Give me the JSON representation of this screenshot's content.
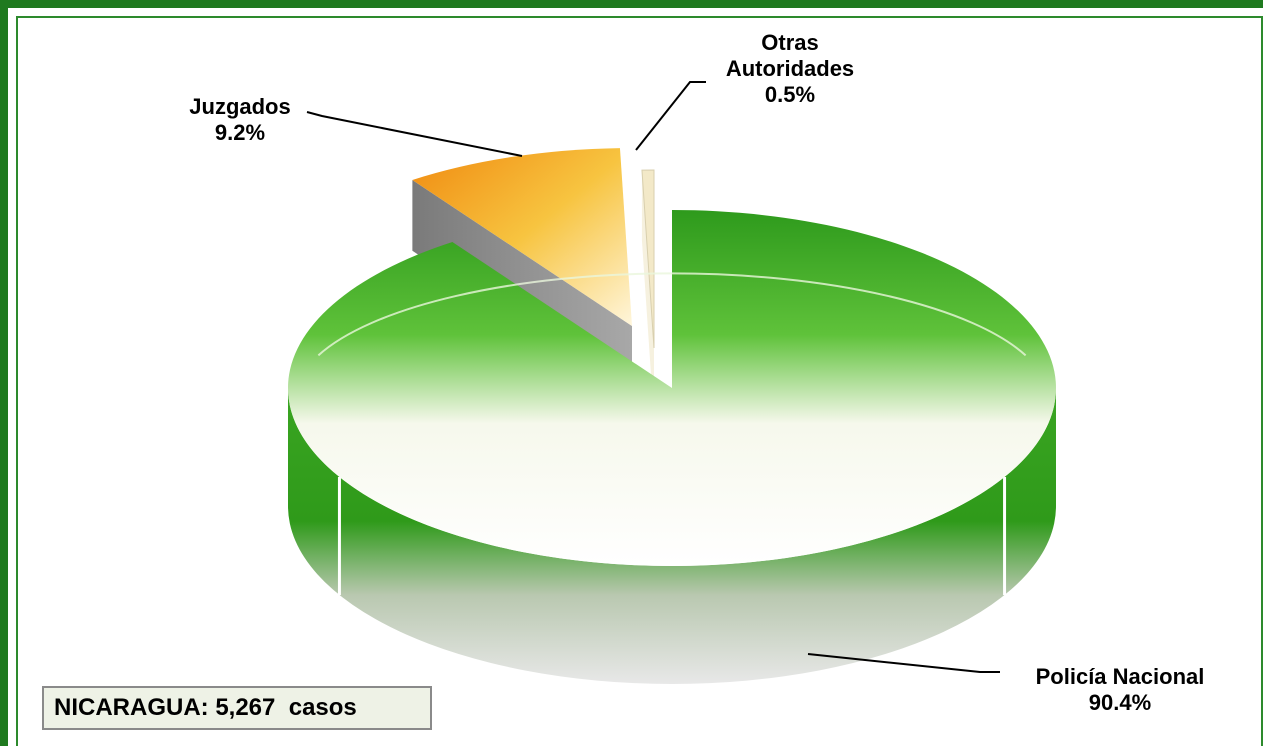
{
  "chart_data": {
    "type": "pie",
    "title": "",
    "total_label": "NICARAGUA: 5,267  casos",
    "slices": [
      {
        "label": "Policía Nacional",
        "value": 90.4,
        "value_label": "90.4%",
        "color": "#3fa62a"
      },
      {
        "label": "Juzgados",
        "value": 9.2,
        "value_label": "9.2%",
        "color": "#f0a020"
      },
      {
        "label": "Otras Autoridades",
        "value": 0.5,
        "value_label": "0.5%",
        "color": "#f3e9c8"
      }
    ],
    "exploded": [
      "Juzgados",
      "Otras Autoridades"
    ],
    "three_d": true
  }
}
